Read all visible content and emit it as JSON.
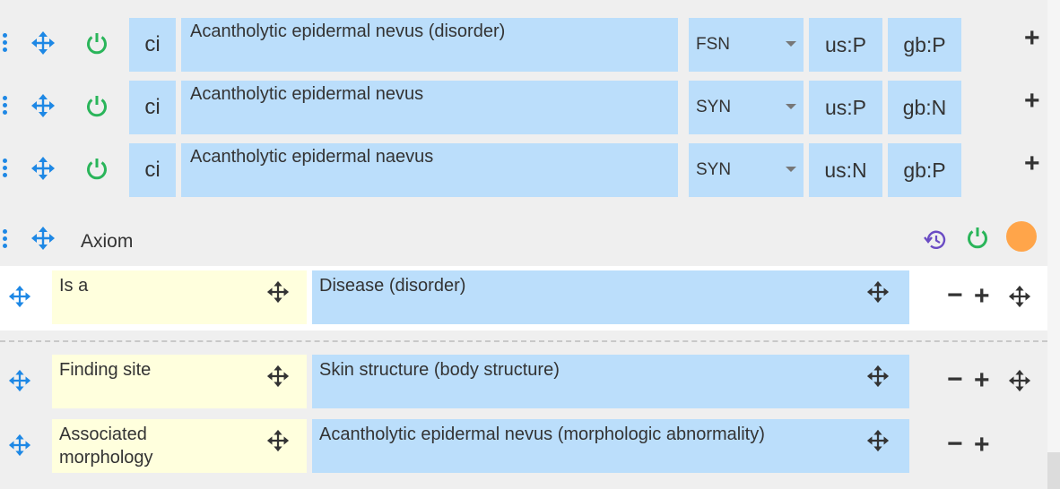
{
  "descriptions": [
    {
      "ci": "ci",
      "term": "Acantholytic epidermal nevus (disorder)",
      "type": "FSN",
      "us": "us:P",
      "gb": "gb:P"
    },
    {
      "ci": "ci",
      "term": "Acantholytic epidermal nevus",
      "type": "SYN",
      "us": "us:P",
      "gb": "gb:N"
    },
    {
      "ci": "ci",
      "term": "Acantholytic epidermal naevus",
      "type": "SYN",
      "us": "us:N",
      "gb": "gb:P"
    }
  ],
  "axiom": {
    "label": "Axiom",
    "status_color": "#ffa54a",
    "relationships": [
      {
        "type": "Is a",
        "target": "Disease (disorder)"
      },
      {
        "type": "Finding site",
        "target": "Skin structure (body structure)"
      },
      {
        "type": "Associated\nmorphology",
        "target": "Acantholytic epidermal nevus (morphologic abnormality)"
      }
    ]
  },
  "icons": {
    "drag": "kebab-drag-icon",
    "move": "move-arrows-icon",
    "power": "power-icon",
    "history": "history-icon",
    "add": "plus-icon",
    "remove": "minus-icon"
  },
  "colors": {
    "blue_cell": "#bbdefb",
    "yellow_cell": "#ffffdd",
    "power_green": "#2ab55a",
    "move_blue": "#1e88e5",
    "history_purple": "#6a4bc4"
  }
}
